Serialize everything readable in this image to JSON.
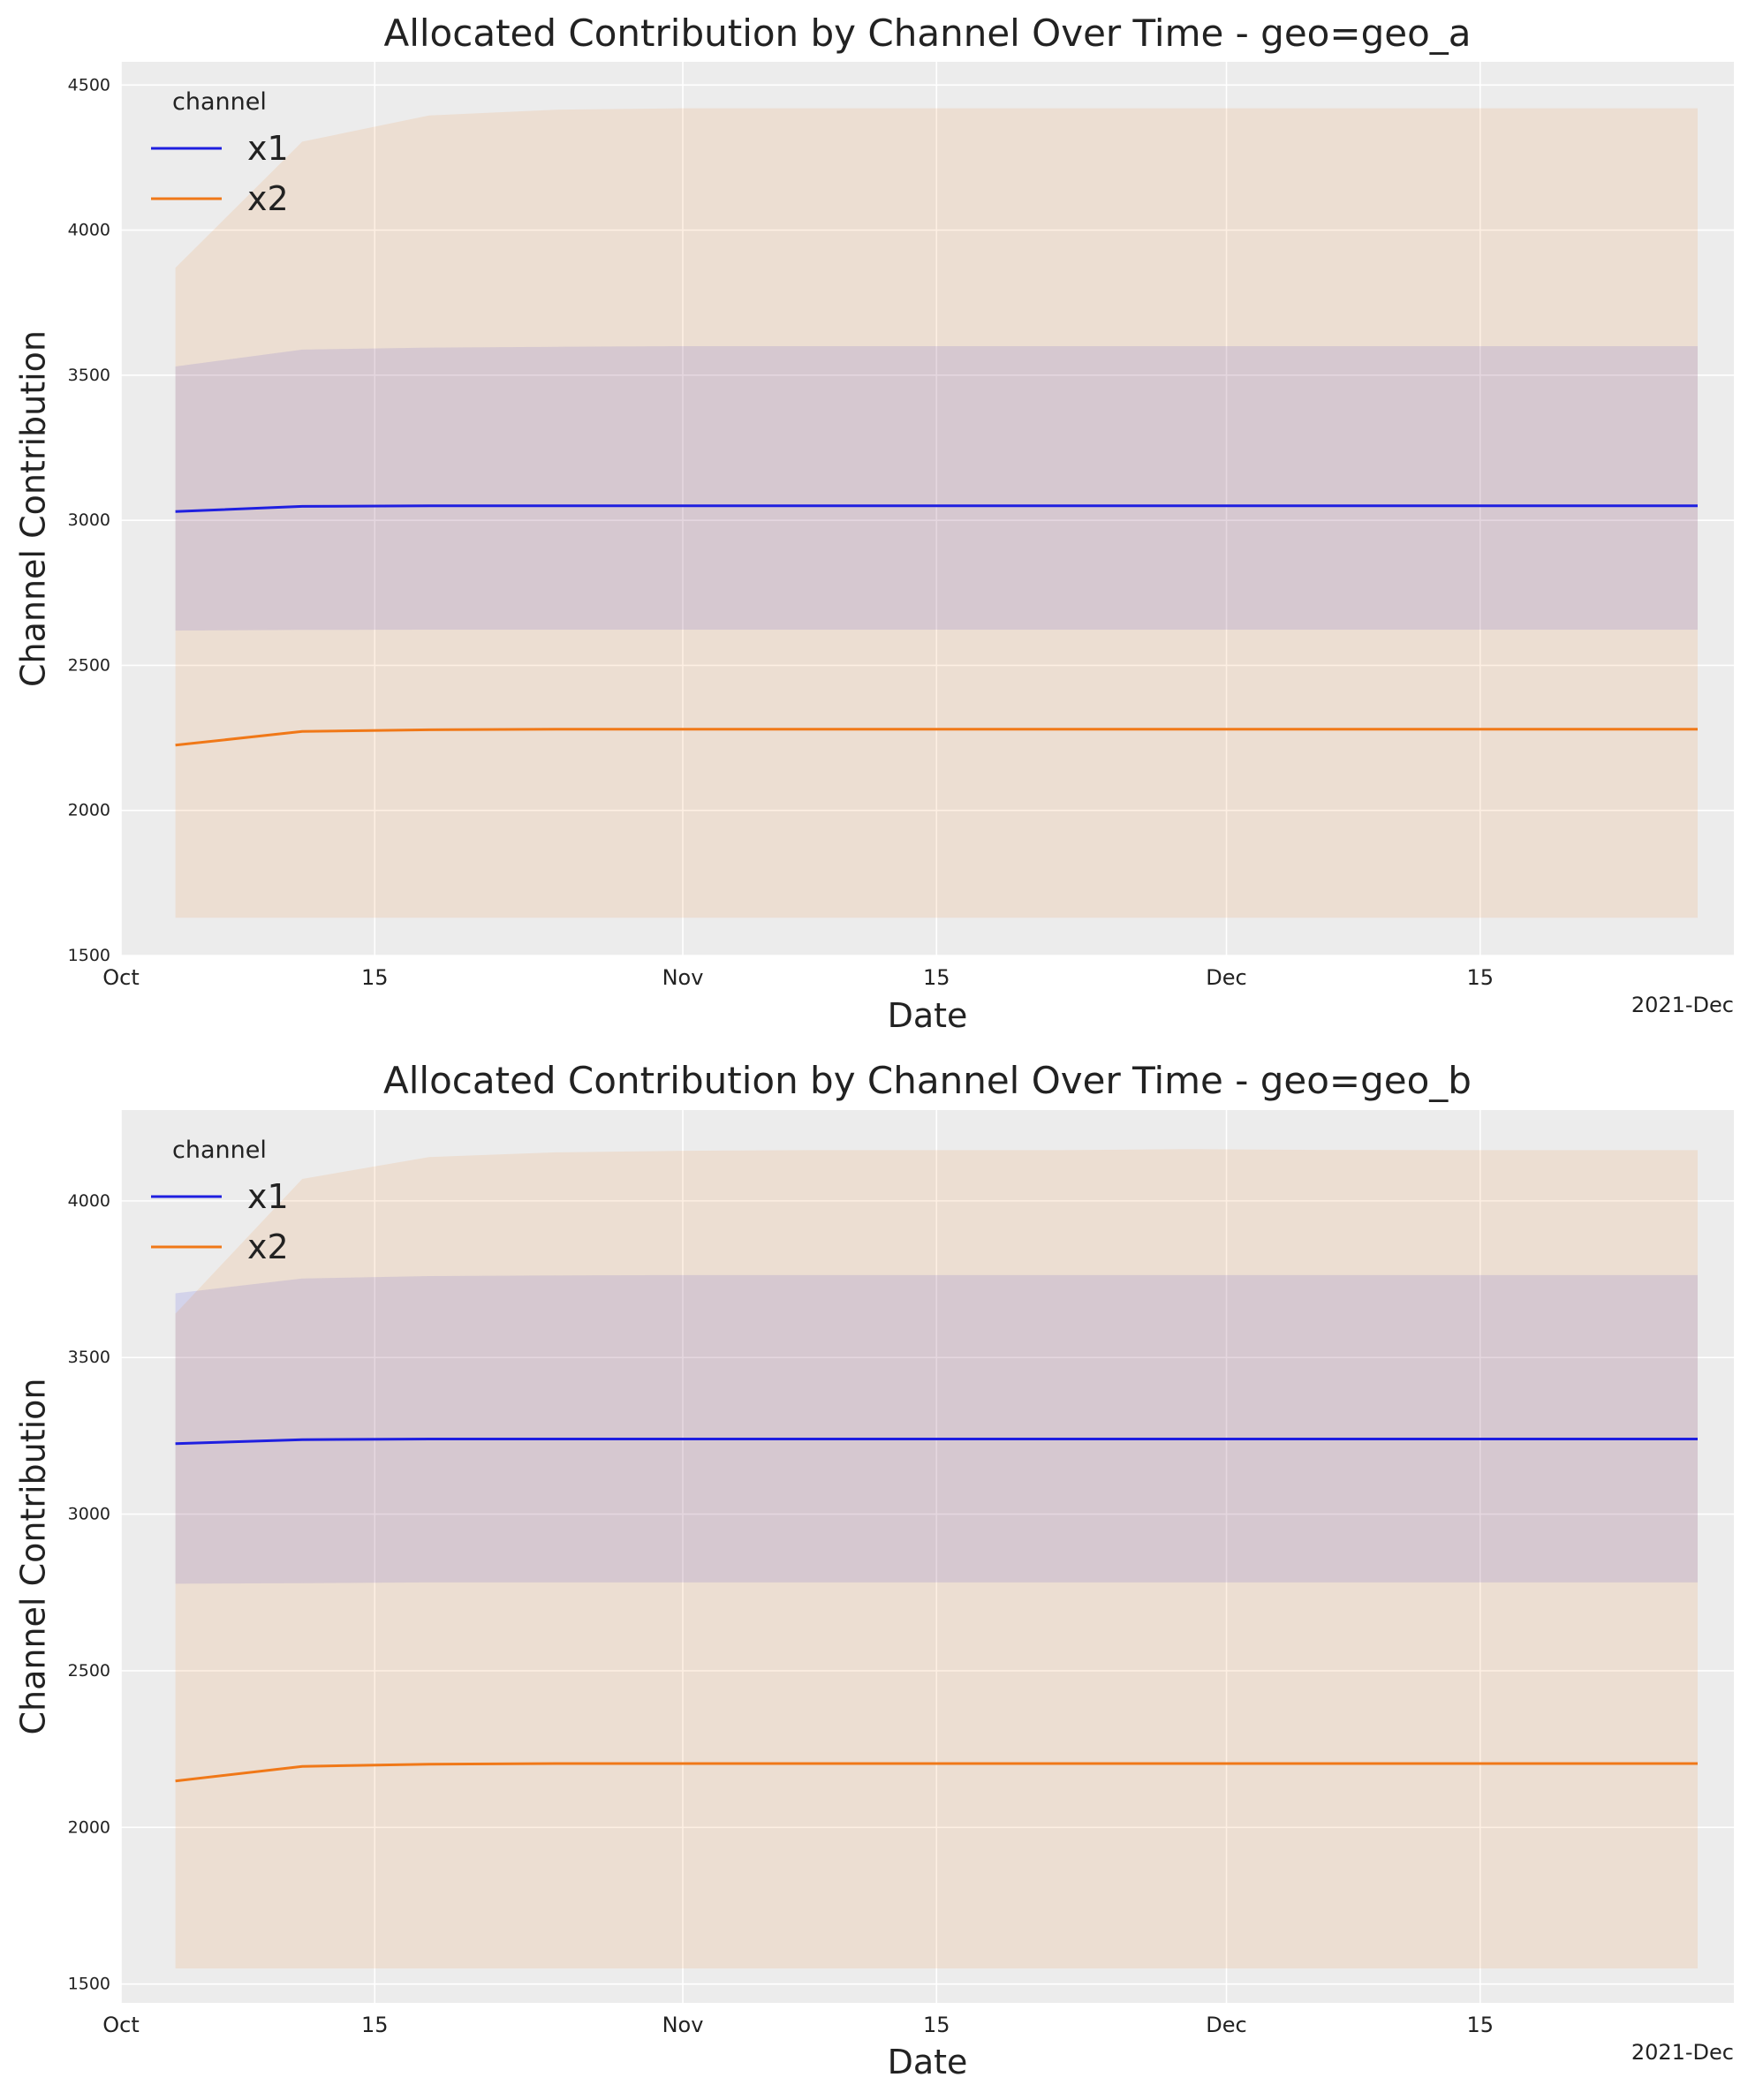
{
  "chart_data": [
    {
      "type": "area",
      "title": "Allocated Contribution by Channel Over Time - geo=geo_a",
      "xlabel": "Date",
      "ylabel": "Channel Contribution",
      "x_axis_offset_label": "2021-Dec",
      "xlim": [
        "2021-10-01",
        "2021-12-29"
      ],
      "ylim": [
        1500,
        4580
      ],
      "x_ticks": [
        {
          "date": "2021-10-01",
          "label": "Oct"
        },
        {
          "date": "2021-10-15",
          "label": "15"
        },
        {
          "date": "2021-11-01",
          "label": "Nov"
        },
        {
          "date": "2021-11-15",
          "label": "15"
        },
        {
          "date": "2021-12-01",
          "label": "Dec"
        },
        {
          "date": "2021-12-15",
          "label": "15"
        }
      ],
      "y_ticks": [
        1500,
        2000,
        2500,
        3000,
        3500,
        4000,
        4500
      ],
      "grid": true,
      "legend": {
        "title": "channel",
        "position": "top-left"
      },
      "x": [
        "2021-10-04",
        "2021-10-11",
        "2021-10-18",
        "2021-10-25",
        "2021-11-01",
        "2021-11-08",
        "2021-11-15",
        "2021-11-22",
        "2021-11-29",
        "2021-12-06",
        "2021-12-13",
        "2021-12-20",
        "2021-12-27"
      ],
      "series": [
        {
          "name": "x1",
          "color": "#1f1fe0",
          "values": [
            3030,
            3048,
            3050,
            3050,
            3050,
            3050,
            3050,
            3050,
            3050,
            3050,
            3050,
            3050,
            3050
          ],
          "hdi_lower": [
            2620,
            2622,
            2623,
            2623,
            2623,
            2623,
            2623,
            2623,
            2623,
            2623,
            2623,
            2623,
            2623
          ],
          "hdi_upper": [
            3530,
            3588,
            3595,
            3598,
            3600,
            3600,
            3600,
            3600,
            3600,
            3600,
            3600,
            3600,
            3600
          ]
        },
        {
          "name": "x2",
          "color": "#f07818",
          "values": [
            2225,
            2272,
            2278,
            2280,
            2280,
            2280,
            2280,
            2280,
            2280,
            2280,
            2280,
            2280,
            2280
          ],
          "hdi_lower": [
            1630,
            1630,
            1630,
            1630,
            1630,
            1630,
            1630,
            1630,
            1630,
            1630,
            1630,
            1630,
            1630
          ],
          "hdi_upper": [
            3870,
            4305,
            4395,
            4415,
            4420,
            4420,
            4420,
            4420,
            4420,
            4420,
            4420,
            4420,
            4420
          ]
        }
      ]
    },
    {
      "type": "area",
      "title": "Allocated Contribution by Channel Over Time - geo=geo_b",
      "xlabel": "Date",
      "ylabel": "Channel Contribution",
      "x_axis_offset_label": "2021-Dec",
      "xlim": [
        "2021-10-01",
        "2021-12-29"
      ],
      "ylim": [
        1440,
        4290
      ],
      "x_ticks": [
        {
          "date": "2021-10-01",
          "label": "Oct"
        },
        {
          "date": "2021-10-15",
          "label": "15"
        },
        {
          "date": "2021-11-01",
          "label": "Nov"
        },
        {
          "date": "2021-11-15",
          "label": "15"
        },
        {
          "date": "2021-12-01",
          "label": "Dec"
        },
        {
          "date": "2021-12-15",
          "label": "15"
        }
      ],
      "y_ticks": [
        1500,
        2000,
        2500,
        3000,
        3500,
        4000
      ],
      "grid": true,
      "legend": {
        "title": "channel",
        "position": "top-left"
      },
      "x": [
        "2021-10-04",
        "2021-10-11",
        "2021-10-18",
        "2021-10-25",
        "2021-11-01",
        "2021-11-08",
        "2021-11-15",
        "2021-11-22",
        "2021-11-29",
        "2021-12-06",
        "2021-12-13",
        "2021-12-20",
        "2021-12-27"
      ],
      "series": [
        {
          "name": "x1",
          "color": "#1f1fe0",
          "values": [
            3225,
            3238,
            3240,
            3240,
            3240,
            3240,
            3240,
            3240,
            3240,
            3240,
            3240,
            3240,
            3240
          ],
          "hdi_lower": [
            2778,
            2780,
            2782,
            2782,
            2782,
            2782,
            2782,
            2782,
            2782,
            2782,
            2782,
            2782,
            2782
          ],
          "hdi_upper": [
            3705,
            3752,
            3760,
            3762,
            3763,
            3763,
            3763,
            3763,
            3763,
            3763,
            3763,
            3763,
            3763
          ]
        },
        {
          "name": "x2",
          "color": "#f07818",
          "values": [
            2148,
            2195,
            2202,
            2204,
            2204,
            2204,
            2204,
            2204,
            2204,
            2204,
            2204,
            2204,
            2204
          ],
          "hdi_lower": [
            1550,
            1550,
            1550,
            1550,
            1550,
            1550,
            1550,
            1550,
            1550,
            1550,
            1550,
            1550,
            1550
          ],
          "hdi_upper": [
            3640,
            4070,
            4140,
            4155,
            4160,
            4162,
            4162,
            4162,
            4165,
            4163,
            4162,
            4162,
            4162
          ]
        }
      ]
    }
  ]
}
